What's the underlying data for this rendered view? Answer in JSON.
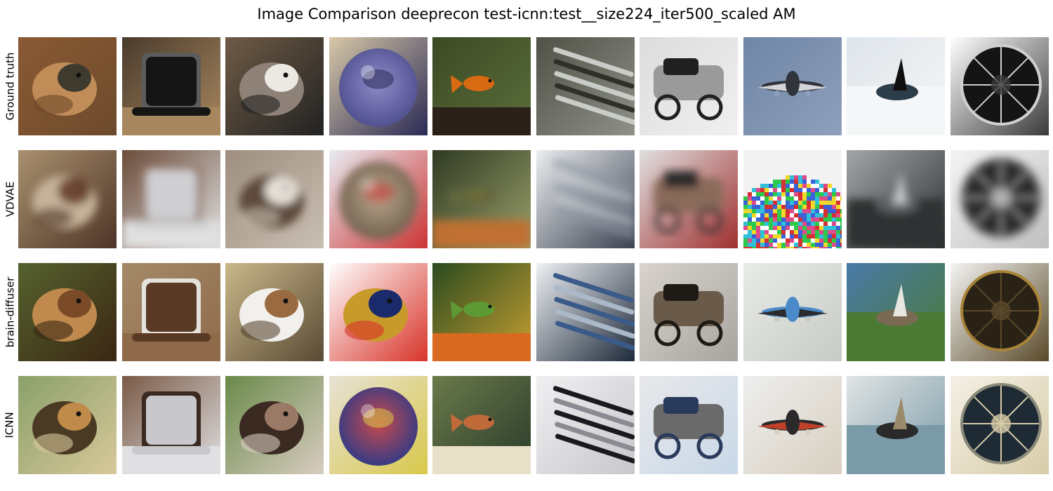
{
  "title": "Image Comparison deeprecon test-icnn:test__size224_iter500_scaled AM",
  "rows": [
    {
      "label": "Ground truth",
      "tiles": [
        {
          "subject": "bat",
          "colors": [
            "#8a5a34",
            "#3f3a2e",
            "#c08d58",
            "#6d4a2c"
          ]
        },
        {
          "subject": "top-hat",
          "colors": [
            "#4a3b2c",
            "#151515",
            "#5c5c5c",
            "#a8875f"
          ]
        },
        {
          "subject": "llama",
          "colors": [
            "#6f5b46",
            "#ece8e2",
            "#8e8178",
            "#222"
          ]
        },
        {
          "subject": "bowling-ball",
          "colors": [
            "#d8c8a8",
            "#4c4c8a",
            "#8d8ac8",
            "#2a2a55"
          ]
        },
        {
          "subject": "goldfish",
          "colors": [
            "#3c4a24",
            "#d86a12",
            "#2b2118",
            "#5a6e3a"
          ]
        },
        {
          "subject": "metal-strips",
          "colors": [
            "#4f5246",
            "#c9ccc7",
            "#2f3129",
            "#8e9188"
          ]
        },
        {
          "subject": "snowmobile",
          "colors": [
            "#dcdcdc",
            "#202020",
            "#9a9a9a",
            "#f0f0f0"
          ]
        },
        {
          "subject": "airplane",
          "colors": [
            "#6f86a6",
            "#d4d4d8",
            "#30343c",
            "#8ea0bb"
          ]
        },
        {
          "subject": "orca",
          "colors": [
            "#dfe5ea",
            "#2c3d4a",
            "#101010",
            "#f4f6f8"
          ]
        },
        {
          "subject": "umbrella",
          "colors": [
            "#ffffff",
            "#141414",
            "#d0d0d0",
            "#3a3a3a"
          ]
        }
      ]
    },
    {
      "label": "VDVAE",
      "tiles": [
        {
          "subject": "blur-brown",
          "colors": [
            "#a9906e",
            "#6f4a35",
            "#c6b39a",
            "#4e3426"
          ]
        },
        {
          "subject": "blur-grey",
          "colors": [
            "#6b4c3a",
            "#cfcfd2",
            "#8d6b55",
            "#e0e0e0"
          ]
        },
        {
          "subject": "blur-fur",
          "colors": [
            "#9e8e7e",
            "#e6e0d8",
            "#5d4a3b",
            "#c9bfb3"
          ]
        },
        {
          "subject": "blur-orb",
          "colors": [
            "#e8edf3",
            "#6b5a4a",
            "#b9a68a",
            "#c33"
          ]
        },
        {
          "subject": "blur-dark",
          "colors": [
            "#2f3a22",
            "#6a6a3a",
            "#c07030",
            "#9aa06a"
          ]
        },
        {
          "subject": "blur-metal",
          "colors": [
            "#eceef0",
            "#8f98a6",
            "#c7ccd3",
            "#3a4150"
          ]
        },
        {
          "subject": "blur-mess",
          "colors": [
            "#e0e0e0",
            "#2b2b2b",
            "#8a6a5a",
            "#a03030"
          ]
        },
        {
          "subject": "noise",
          "colors": [
            "#f2f2f2",
            "#2cc94a",
            "#3a62d8",
            "#e04a8a"
          ]
        },
        {
          "subject": "blur-fin",
          "colors": [
            "#a3a6a8",
            "#5e6264",
            "#c8cbcd",
            "#2d3032"
          ]
        },
        {
          "subject": "blur-mesh",
          "colors": [
            "#f4f4f4",
            "#2a2a2a",
            "#7a7a7a",
            "#c0c0c0"
          ]
        }
      ]
    },
    {
      "label": "brain-diffuser",
      "tiles": [
        {
          "subject": "bronze-creature",
          "colors": [
            "#55622e",
            "#7a4b26",
            "#c08a4e",
            "#3a2612"
          ]
        },
        {
          "subject": "radio",
          "colors": [
            "#a58a68",
            "#5a3a24",
            "#e4e2dc",
            "#8e6a4a"
          ]
        },
        {
          "subject": "camel",
          "colors": [
            "#c9b88a",
            "#9a6a40",
            "#f2f0ec",
            "#5a4a34"
          ]
        },
        {
          "subject": "ornament",
          "colors": [
            "#ffffff",
            "#1a2a6a",
            "#c89a2a",
            "#d8342a"
          ]
        },
        {
          "subject": "food",
          "colors": [
            "#2a4a20",
            "#5e9a34",
            "#d86a20",
            "#c8a030"
          ]
        },
        {
          "subject": "toy-gun",
          "colors": [
            "#eef1f4",
            "#3a5a8a",
            "#aab8c8",
            "#1e2a3a"
          ]
        },
        {
          "subject": "tricycle",
          "colors": [
            "#d8d4cc",
            "#1e1a16",
            "#6a5a4a",
            "#a8a4a0"
          ]
        },
        {
          "subject": "helicopter",
          "colors": [
            "#e8ebe8",
            "#2a2a2a",
            "#4a8ac8",
            "#c8cac4"
          ]
        },
        {
          "subject": "bird-water",
          "colors": [
            "#4a7aa8",
            "#7a6a54",
            "#e8e6e0",
            "#4a7a34"
          ]
        },
        {
          "subject": "medallion",
          "colors": [
            "#f4f4f2",
            "#2a2216",
            "#a8843a",
            "#5a4a2a"
          ]
        }
      ]
    },
    {
      "label": "ICNN",
      "tiles": [
        {
          "subject": "bat-icnn",
          "colors": [
            "#8aa06a",
            "#c08a4a",
            "#4a3a24",
            "#d8c89a"
          ]
        },
        {
          "subject": "tv-icnn",
          "colors": [
            "#7a5a46",
            "#c8c8cc",
            "#3a2a22",
            "#e0e0e2"
          ]
        },
        {
          "subject": "animal-icnn",
          "colors": [
            "#6a8a4a",
            "#9a7a66",
            "#3a2a22",
            "#d8ccc0"
          ]
        },
        {
          "subject": "ball-icnn",
          "colors": [
            "#e8e2d6",
            "#2a3a8a",
            "#c84a4a",
            "#d8c84a"
          ]
        },
        {
          "subject": "fish-icnn",
          "colors": [
            "#6a7a4a",
            "#c06a3a",
            "#e8e0c8",
            "#2a3a2a"
          ]
        },
        {
          "subject": "gun-icnn",
          "colors": [
            "#f0f0f2",
            "#1a1a1e",
            "#8a8a92",
            "#c8c8cc"
          ]
        },
        {
          "subject": "machine-icnn",
          "colors": [
            "#e8e8ea",
            "#2a3a5a",
            "#6a6a6a",
            "#c8d8e8"
          ]
        },
        {
          "subject": "plane-icnn",
          "colors": [
            "#eeeeee",
            "#c0402a",
            "#2a2a2a",
            "#d8d0c0"
          ]
        },
        {
          "subject": "bird-icnn",
          "colors": [
            "#e0e4e4",
            "#2a2a2a",
            "#9a8a6a",
            "#7a9aa8"
          ]
        },
        {
          "subject": "medallion-icnn",
          "colors": [
            "#f4f0e6",
            "#1e2a34",
            "#8a8a7a",
            "#d8cca8"
          ]
        }
      ]
    }
  ]
}
